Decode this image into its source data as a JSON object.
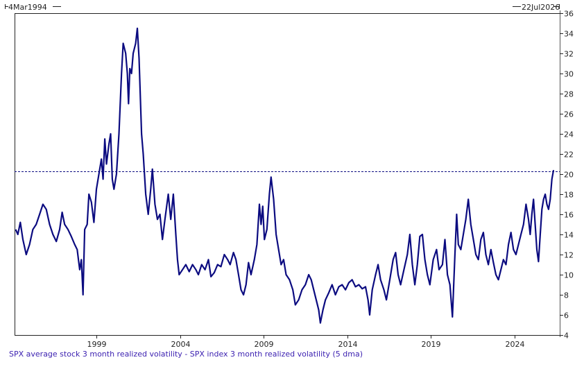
{
  "chart_data": {
    "type": "line",
    "title": "",
    "caption": "SPX average stock 3 month realized volatility - SPX index 3 month realized volatility (5 dma)",
    "start_label": "4Mar1994",
    "end_label": "22Jul2026",
    "xlabel": "",
    "ylabel": "",
    "xlim": [
      1994.17,
      2026.55
    ],
    "ylim": [
      4,
      36
    ],
    "x_ticks": [
      "1999",
      "2004",
      "2009",
      "2014",
      "2019",
      "2024"
    ],
    "x_tick_values": [
      1999,
      2004,
      2009,
      2014,
      2019,
      2024
    ],
    "y_ticks": [
      4,
      6,
      8,
      10,
      12,
      14,
      16,
      18,
      20,
      22,
      24,
      26,
      28,
      30,
      32,
      34,
      36
    ],
    "y_axis_side": "right",
    "grid": false,
    "reference_line": {
      "value": 20.3,
      "style": "dashed"
    },
    "line_color": "#0b0b80",
    "series": [
      {
        "name": "SPX average stock 3 month realized volatility - SPX index 3 month realized volatility (5 dma)",
        "points": [
          [
            1994.17,
            14.5
          ],
          [
            1994.3,
            14.0
          ],
          [
            1994.45,
            15.2
          ],
          [
            1994.6,
            13.5
          ],
          [
            1994.8,
            12.0
          ],
          [
            1995.0,
            13.0
          ],
          [
            1995.2,
            14.5
          ],
          [
            1995.4,
            15.0
          ],
          [
            1995.6,
            16.0
          ],
          [
            1995.8,
            17.0
          ],
          [
            1996.0,
            16.5
          ],
          [
            1996.2,
            15.0
          ],
          [
            1996.4,
            14.0
          ],
          [
            1996.6,
            13.3
          ],
          [
            1996.8,
            14.5
          ],
          [
            1996.95,
            16.2
          ],
          [
            1997.1,
            15.0
          ],
          [
            1997.3,
            14.5
          ],
          [
            1997.5,
            13.8
          ],
          [
            1997.7,
            13.0
          ],
          [
            1997.85,
            12.5
          ],
          [
            1998.0,
            10.5
          ],
          [
            1998.1,
            11.5
          ],
          [
            1998.2,
            8.0
          ],
          [
            1998.3,
            14.5
          ],
          [
            1998.45,
            15.0
          ],
          [
            1998.55,
            18.0
          ],
          [
            1998.7,
            17.2
          ],
          [
            1998.85,
            15.2
          ],
          [
            1999.0,
            18.5
          ],
          [
            1999.15,
            20.0
          ],
          [
            1999.3,
            21.5
          ],
          [
            1999.4,
            19.5
          ],
          [
            1999.5,
            23.5
          ],
          [
            1999.6,
            21.0
          ],
          [
            1999.75,
            23.0
          ],
          [
            1999.85,
            24.0
          ],
          [
            1999.95,
            19.5
          ],
          [
            2000.05,
            18.5
          ],
          [
            2000.2,
            20.0
          ],
          [
            2000.35,
            24.0
          ],
          [
            2000.5,
            30.0
          ],
          [
            2000.6,
            33.0
          ],
          [
            2000.75,
            32.0
          ],
          [
            2000.85,
            30.0
          ],
          [
            2000.92,
            27.0
          ],
          [
            2001.0,
            30.5
          ],
          [
            2001.1,
            30.0
          ],
          [
            2001.2,
            32.0
          ],
          [
            2001.35,
            33.0
          ],
          [
            2001.45,
            34.5
          ],
          [
            2001.55,
            31.5
          ],
          [
            2001.7,
            24.0
          ],
          [
            2001.8,
            22.0
          ],
          [
            2001.95,
            18.0
          ],
          [
            2002.1,
            16.0
          ],
          [
            2002.25,
            18.5
          ],
          [
            2002.35,
            20.5
          ],
          [
            2002.5,
            17.0
          ],
          [
            2002.65,
            15.5
          ],
          [
            2002.8,
            16.0
          ],
          [
            2002.95,
            13.5
          ],
          [
            2003.1,
            15.5
          ],
          [
            2003.3,
            18.0
          ],
          [
            2003.45,
            15.5
          ],
          [
            2003.6,
            18.0
          ],
          [
            2003.75,
            14.0
          ],
          [
            2003.85,
            11.5
          ],
          [
            2003.95,
            10.0
          ],
          [
            2004.15,
            10.5
          ],
          [
            2004.35,
            11.0
          ],
          [
            2004.55,
            10.3
          ],
          [
            2004.75,
            11.0
          ],
          [
            2004.95,
            10.5
          ],
          [
            2005.1,
            10.0
          ],
          [
            2005.3,
            11.0
          ],
          [
            2005.5,
            10.5
          ],
          [
            2005.7,
            11.5
          ],
          [
            2005.85,
            9.8
          ],
          [
            2006.05,
            10.2
          ],
          [
            2006.25,
            11.0
          ],
          [
            2006.45,
            10.8
          ],
          [
            2006.65,
            12.0
          ],
          [
            2006.85,
            11.5
          ],
          [
            2007.0,
            11.0
          ],
          [
            2007.2,
            12.2
          ],
          [
            2007.35,
            11.5
          ],
          [
            2007.5,
            10.0
          ],
          [
            2007.65,
            8.5
          ],
          [
            2007.8,
            8.0
          ],
          [
            2007.95,
            9.0
          ],
          [
            2008.1,
            11.2
          ],
          [
            2008.25,
            10.0
          ],
          [
            2008.45,
            11.5
          ],
          [
            2008.6,
            13.0
          ],
          [
            2008.75,
            17.0
          ],
          [
            2008.85,
            15.0
          ],
          [
            2008.95,
            16.8
          ],
          [
            2009.05,
            13.5
          ],
          [
            2009.2,
            14.5
          ],
          [
            2009.35,
            18.0
          ],
          [
            2009.45,
            19.7
          ],
          [
            2009.6,
            17.5
          ],
          [
            2009.75,
            14.0
          ],
          [
            2009.9,
            12.5
          ],
          [
            2010.05,
            11.0
          ],
          [
            2010.2,
            11.5
          ],
          [
            2010.35,
            10.0
          ],
          [
            2010.55,
            9.5
          ],
          [
            2010.75,
            8.5
          ],
          [
            2010.9,
            7.0
          ],
          [
            2011.1,
            7.5
          ],
          [
            2011.3,
            8.5
          ],
          [
            2011.5,
            9.0
          ],
          [
            2011.7,
            10.0
          ],
          [
            2011.85,
            9.5
          ],
          [
            2012.0,
            8.5
          ],
          [
            2012.15,
            7.5
          ],
          [
            2012.3,
            6.5
          ],
          [
            2012.4,
            5.2
          ],
          [
            2012.55,
            6.5
          ],
          [
            2012.7,
            7.5
          ],
          [
            2012.9,
            8.2
          ],
          [
            2013.1,
            9.0
          ],
          [
            2013.3,
            8.0
          ],
          [
            2013.5,
            8.8
          ],
          [
            2013.7,
            9.0
          ],
          [
            2013.9,
            8.5
          ],
          [
            2014.1,
            9.2
          ],
          [
            2014.3,
            9.5
          ],
          [
            2014.5,
            8.8
          ],
          [
            2014.7,
            9.0
          ],
          [
            2014.9,
            8.6
          ],
          [
            2015.1,
            8.8
          ],
          [
            2015.25,
            7.5
          ],
          [
            2015.35,
            6.0
          ],
          [
            2015.5,
            8.5
          ],
          [
            2015.7,
            10.0
          ],
          [
            2015.85,
            11.0
          ],
          [
            2016.0,
            9.5
          ],
          [
            2016.2,
            8.5
          ],
          [
            2016.35,
            7.5
          ],
          [
            2016.55,
            9.5
          ],
          [
            2016.75,
            11.5
          ],
          [
            2016.9,
            12.2
          ],
          [
            2017.05,
            10.0
          ],
          [
            2017.2,
            9.0
          ],
          [
            2017.4,
            10.5
          ],
          [
            2017.6,
            12.0
          ],
          [
            2017.75,
            14.0
          ],
          [
            2017.9,
            11.0
          ],
          [
            2018.05,
            9.0
          ],
          [
            2018.2,
            11.0
          ],
          [
            2018.35,
            13.8
          ],
          [
            2018.5,
            14.0
          ],
          [
            2018.65,
            11.5
          ],
          [
            2018.8,
            10.0
          ],
          [
            2018.95,
            9.0
          ],
          [
            2019.15,
            11.5
          ],
          [
            2019.35,
            12.5
          ],
          [
            2019.5,
            10.5
          ],
          [
            2019.7,
            11.0
          ],
          [
            2019.85,
            13.5
          ],
          [
            2020.0,
            10.0
          ],
          [
            2020.15,
            9.0
          ],
          [
            2020.3,
            5.8
          ],
          [
            2020.45,
            12.0
          ],
          [
            2020.55,
            16.0
          ],
          [
            2020.65,
            13.0
          ],
          [
            2020.8,
            12.5
          ],
          [
            2020.95,
            14.0
          ],
          [
            2021.1,
            15.5
          ],
          [
            2021.25,
            17.5
          ],
          [
            2021.4,
            15.0
          ],
          [
            2021.55,
            13.5
          ],
          [
            2021.7,
            12.0
          ],
          [
            2021.85,
            11.5
          ],
          [
            2022.0,
            13.5
          ],
          [
            2022.15,
            14.2
          ],
          [
            2022.3,
            12.0
          ],
          [
            2022.45,
            11.0
          ],
          [
            2022.6,
            12.5
          ],
          [
            2022.75,
            11.2
          ],
          [
            2022.9,
            10.0
          ],
          [
            2023.05,
            9.5
          ],
          [
            2023.2,
            10.5
          ],
          [
            2023.35,
            11.5
          ],
          [
            2023.5,
            11.0
          ],
          [
            2023.65,
            13.0
          ],
          [
            2023.8,
            14.2
          ],
          [
            2023.95,
            12.5
          ],
          [
            2024.1,
            12.0
          ],
          [
            2024.25,
            13.0
          ],
          [
            2024.4,
            14.0
          ],
          [
            2024.55,
            15.0
          ],
          [
            2024.7,
            17.0
          ],
          [
            2024.85,
            15.5
          ],
          [
            2024.95,
            14.0
          ],
          [
            2025.05,
            16.0
          ],
          [
            2025.15,
            17.5
          ],
          [
            2025.25,
            15.0
          ],
          [
            2025.35,
            12.5
          ],
          [
            2025.45,
            11.3
          ],
          [
            2025.55,
            14.0
          ],
          [
            2025.65,
            16.5
          ],
          [
            2025.75,
            17.5
          ],
          [
            2025.85,
            18.0
          ],
          [
            2025.95,
            17.0
          ],
          [
            2026.05,
            16.5
          ],
          [
            2026.15,
            17.5
          ],
          [
            2026.25,
            19.5
          ],
          [
            2026.35,
            20.4
          ]
        ]
      }
    ]
  }
}
